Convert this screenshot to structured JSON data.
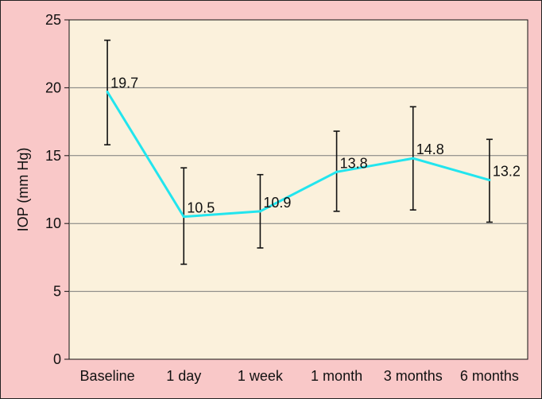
{
  "chart_data": {
    "type": "line",
    "title": "",
    "xlabel": "",
    "ylabel": "IOP (mm Hg)",
    "categories": [
      "Baseline",
      "1 day",
      "1 week",
      "1 month",
      "3 months",
      "6 months"
    ],
    "series": [
      {
        "values": [
          19.7,
          10.5,
          10.9,
          13.8,
          14.8,
          13.2
        ],
        "error_low": [
          15.8,
          7.0,
          8.2,
          10.9,
          11.0,
          10.1
        ],
        "error_high": [
          23.5,
          14.1,
          13.6,
          16.8,
          18.6,
          16.2
        ],
        "data_labels": [
          "19.7",
          "10.5",
          "10.9",
          "13.8",
          "14.8",
          "13.2"
        ],
        "color": "#22e5ee"
      }
    ],
    "ylim": [
      0,
      25
    ],
    "yticks": [
      "0",
      "5",
      "10",
      "15",
      "20",
      "25"
    ],
    "grid": true,
    "legend": "none",
    "colors": {
      "outer_background": "#f9c8c8",
      "plot_background": "#fbf1dc",
      "gridline": "#7a7a7a",
      "error_bar": "#111111"
    }
  }
}
